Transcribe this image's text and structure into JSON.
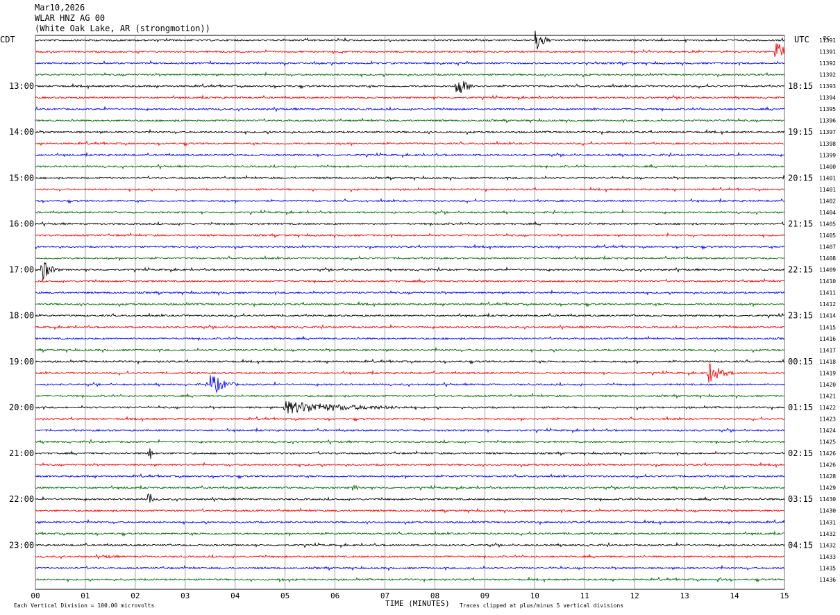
{
  "header": {
    "date": "Mar10,2026",
    "station": "WLAR HNZ AG 00",
    "location": "(White Oak Lake, AR (strongmotion))"
  },
  "labels": {
    "left_tz": "CDT",
    "right_tz": "UTC",
    "dc": "DC",
    "xlabel": "TIME (MINUTES)",
    "footer_scale": "Each Vertical Division =  100.00 microvolts",
    "footer_clip": "Traces clipped at plus/minus 5 vertical divisions"
  },
  "colors": {
    "trace_cycle": [
      "#000000",
      "#ff0000",
      "#0000ff",
      "#006600"
    ],
    "grid": "#888888"
  },
  "chart_data": {
    "type": "line",
    "title": "Mar10,2026 WLAR HNZ AG 00 (White Oak Lake, AR (strongmotion))",
    "xlabel": "TIME (MINUTES)",
    "xlim": [
      0,
      15
    ],
    "x_ticks": [
      "00",
      "01",
      "02",
      "03",
      "04",
      "05",
      "06",
      "07",
      "08",
      "09",
      "10",
      "11",
      "12",
      "13",
      "14",
      "15"
    ],
    "num_traces": 48,
    "left_hour_labels": [
      "13:00",
      "14:00",
      "15:00",
      "16:00",
      "17:00",
      "18:00",
      "19:00",
      "20:00",
      "21:00",
      "22:00",
      "23:00"
    ],
    "right_hour_labels": [
      "18:15",
      "19:15",
      "20:15",
      "21:15",
      "22:15",
      "23:15",
      "00:15",
      "01:15",
      "02:15",
      "03:15",
      "04:15"
    ],
    "hour_label_first_trace": 4,
    "hour_label_every": 4,
    "dc_offsets": [
      11391,
      11391,
      11392,
      11392,
      11393,
      11394,
      11395,
      11396,
      11397,
      11398,
      11399,
      11400,
      11401,
      11401,
      11402,
      11404,
      11405,
      11405,
      11407,
      11408,
      11409,
      11410,
      11411,
      11412,
      11414,
      11415,
      11416,
      11417,
      11418,
      11419,
      11420,
      11421,
      11422,
      11423,
      11424,
      11425,
      11426,
      11426,
      11428,
      11429,
      11430,
      11430,
      11431,
      11432,
      11432,
      11433,
      11435,
      11436
    ],
    "events": [
      {
        "trace": 0,
        "minute": 10.05,
        "amplitude": 5.0,
        "duration_min": 0.3
      },
      {
        "trace": 1,
        "minute": 14.85,
        "amplitude": 5.0,
        "duration_min": 0.35
      },
      {
        "trace": 4,
        "minute": 8.45,
        "amplitude": 5.0,
        "duration_min": 0.4
      },
      {
        "trace": 6,
        "minute": 11.2,
        "amplitude": 0.6,
        "duration_min": 0.5
      },
      {
        "trace": 20,
        "minute": 0.15,
        "amplitude": 5.0,
        "duration_min": 0.35
      },
      {
        "trace": 29,
        "minute": 13.5,
        "amplitude": 5.0,
        "duration_min": 0.5
      },
      {
        "trace": 30,
        "minute": 3.55,
        "amplitude": 5.0,
        "duration_min": 0.5
      },
      {
        "trace": 32,
        "minute": 5.0,
        "amplitude": 3.0,
        "duration_min": 3.0
      },
      {
        "trace": 36,
        "minute": 2.3,
        "amplitude": 3.0,
        "duration_min": 0.1
      },
      {
        "trace": 39,
        "minute": 6.4,
        "amplitude": 1.2,
        "duration_min": 0.3
      },
      {
        "trace": 40,
        "minute": 2.3,
        "amplitude": 3.0,
        "duration_min": 0.1
      },
      {
        "trace": 45,
        "minute": 1.4,
        "amplitude": 0.8,
        "duration_min": 0.9
      },
      {
        "trace": 47,
        "minute": 4.9,
        "amplitude": 1.0,
        "duration_min": 0.3
      },
      {
        "trace": 47,
        "minute": 13.7,
        "amplitude": 1.0,
        "duration_min": 0.4
      }
    ]
  }
}
